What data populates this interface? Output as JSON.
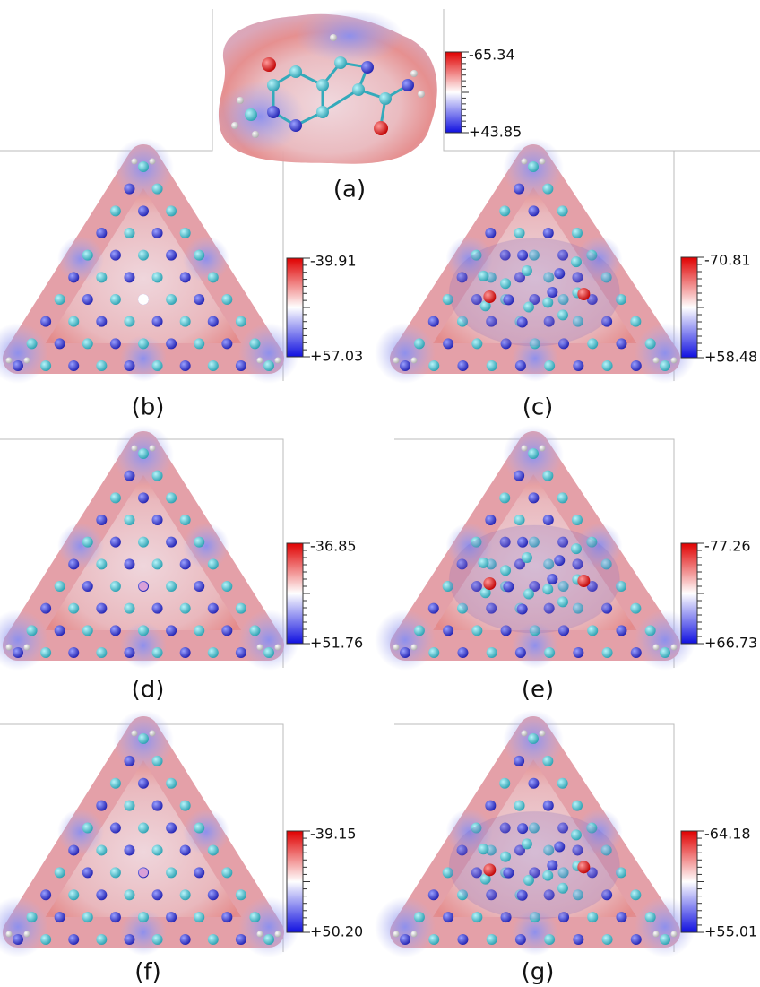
{
  "panels": [
    {
      "label": "(a)",
      "max_label": "-65.34",
      "min_label": "+43.85"
    },
    {
      "label": "(b)",
      "max_label": "-39.91",
      "min_label": "+57.03"
    },
    {
      "label": "(c)",
      "max_label": "-70.81",
      "min_label": "+58.48"
    },
    {
      "label": "(d)",
      "max_label": "-36.85",
      "min_label": "+51.76"
    },
    {
      "label": "(e)",
      "max_label": "-77.26",
      "min_label": "+66.73"
    },
    {
      "label": "(f)",
      "max_label": "-39.15",
      "min_label": "+50.20"
    },
    {
      "label": "(g)",
      "max_label": "-64.18",
      "min_label": "+55.01"
    }
  ]
}
